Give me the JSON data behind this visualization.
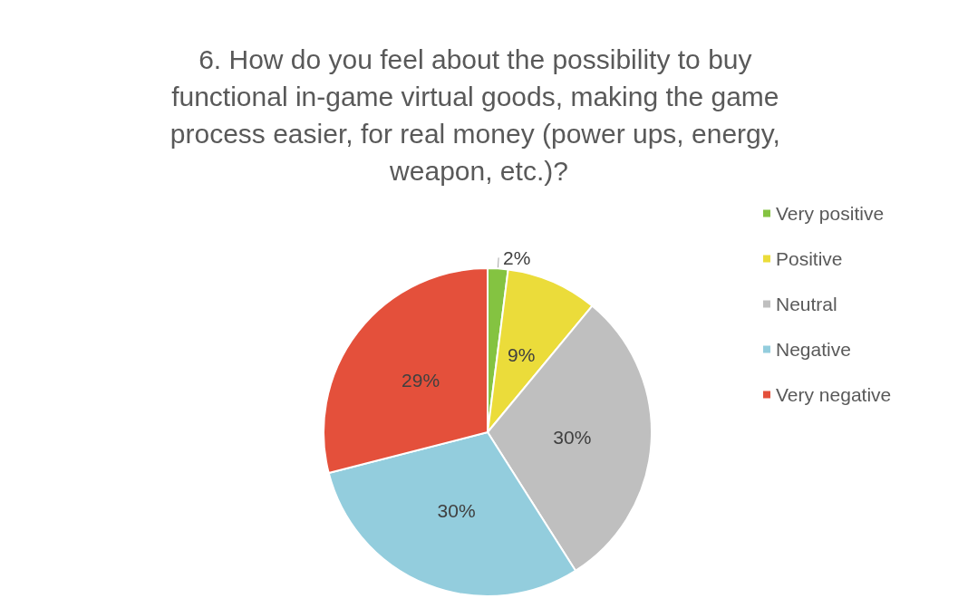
{
  "chart_data": {
    "type": "pie",
    "title": "6. How do you feel about the possibility to buy functional in-game virtual goods, making the game process easier, for real money (power ups, energy, weapon, etc.)?",
    "categories": [
      "Very positive",
      "Positive",
      "Neutral",
      "Negative",
      "Very negative"
    ],
    "values": [
      2,
      9,
      30,
      30,
      29
    ],
    "colors": [
      "#84c341",
      "#ebdc3a",
      "#bfbfbf",
      "#93cddd",
      "#e4503b"
    ],
    "value_labels": [
      "2%",
      "9%",
      "30%",
      "30%",
      "29%"
    ],
    "legend": "right"
  }
}
